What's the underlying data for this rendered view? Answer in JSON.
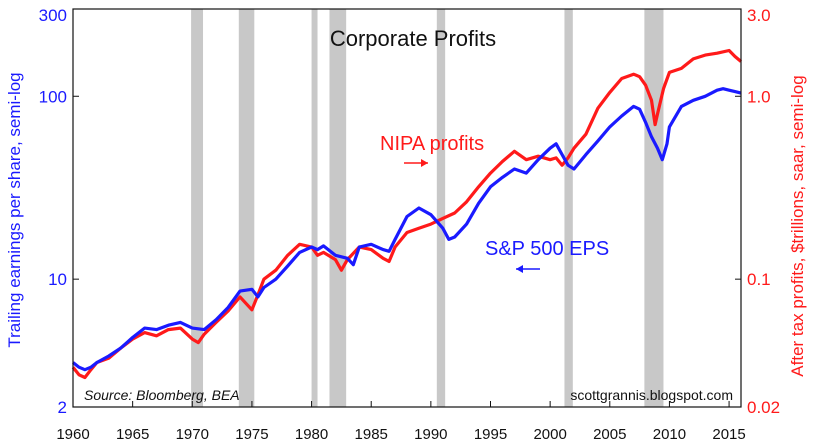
{
  "chart_data": {
    "type": "line",
    "title": "Corporate Profits",
    "x_axis": {
      "min": 1960,
      "max": 2016,
      "ticks": [
        1960,
        1965,
        1970,
        1975,
        1980,
        1985,
        1990,
        1995,
        2000,
        2005,
        2010,
        2015
      ]
    },
    "y_left": {
      "label": "Trailing earnings per share, semi-log",
      "scale": "log",
      "min": 2,
      "max": 300,
      "ticks": [
        {
          "value": 2,
          "label": "2"
        },
        {
          "value": 10,
          "label": "10"
        },
        {
          "value": 100,
          "label": "100"
        },
        {
          "value": 300,
          "label": "300"
        }
      ],
      "color": "#1a1aff"
    },
    "y_right": {
      "label": "After tax profits, $trillions, saar, semi-log",
      "scale": "log",
      "min": 0.02,
      "max": 3.0,
      "ticks": [
        {
          "value": 0.02,
          "label": "0.02"
        },
        {
          "value": 0.1,
          "label": "0.1"
        },
        {
          "value": 1.0,
          "label": "1.0"
        },
        {
          "value": 3.0,
          "label": "3.0"
        }
      ],
      "color": "#ff1a1a"
    },
    "grid": false,
    "recessions": [
      [
        1969.9,
        1970.9
      ],
      [
        1973.9,
        1975.2
      ],
      [
        1980.0,
        1980.5
      ],
      [
        1981.5,
        1982.9
      ],
      [
        1990.5,
        1991.2
      ],
      [
        2001.2,
        2001.9
      ],
      [
        2007.9,
        2009.5
      ]
    ],
    "series": [
      {
        "name": "S&P 500 EPS",
        "axis": "left",
        "color": "#1a1aff",
        "points": [
          [
            1960.0,
            3.5
          ],
          [
            1960.5,
            3.3
          ],
          [
            1961.0,
            3.2
          ],
          [
            1961.5,
            3.3
          ],
          [
            1962.0,
            3.5
          ],
          [
            1963.0,
            3.8
          ],
          [
            1964.0,
            4.2
          ],
          [
            1965.0,
            4.8
          ],
          [
            1966.0,
            5.4
          ],
          [
            1967.0,
            5.3
          ],
          [
            1968.0,
            5.6
          ],
          [
            1969.0,
            5.8
          ],
          [
            1970.0,
            5.4
          ],
          [
            1971.0,
            5.3
          ],
          [
            1972.0,
            6.0
          ],
          [
            1973.0,
            7.0
          ],
          [
            1974.0,
            8.6
          ],
          [
            1975.0,
            8.8
          ],
          [
            1975.5,
            8.0
          ],
          [
            1976.0,
            9.0
          ],
          [
            1977.0,
            10.0
          ],
          [
            1978.0,
            11.8
          ],
          [
            1979.0,
            14.0
          ],
          [
            1980.0,
            15.0
          ],
          [
            1980.5,
            14.5
          ],
          [
            1981.0,
            15.2
          ],
          [
            1982.0,
            13.5
          ],
          [
            1983.0,
            13.0
          ],
          [
            1983.5,
            12.0
          ],
          [
            1984.0,
            15.0
          ],
          [
            1985.0,
            15.5
          ],
          [
            1986.0,
            14.5
          ],
          [
            1986.5,
            14.2
          ],
          [
            1987.0,
            16.5
          ],
          [
            1988.0,
            22.0
          ],
          [
            1989.0,
            24.5
          ],
          [
            1990.0,
            22.5
          ],
          [
            1991.0,
            19.0
          ],
          [
            1991.5,
            16.5
          ],
          [
            1992.0,
            17.0
          ],
          [
            1993.0,
            20.0
          ],
          [
            1994.0,
            26.0
          ],
          [
            1995.0,
            32.0
          ],
          [
            1996.0,
            36.0
          ],
          [
            1997.0,
            40.0
          ],
          [
            1998.0,
            38.0
          ],
          [
            1999.0,
            45.0
          ],
          [
            2000.0,
            52.0
          ],
          [
            2000.5,
            55.0
          ],
          [
            2001.0,
            48.0
          ],
          [
            2001.5,
            42.0
          ],
          [
            2002.0,
            40.0
          ],
          [
            2003.0,
            48.0
          ],
          [
            2004.0,
            57.0
          ],
          [
            2005.0,
            68.0
          ],
          [
            2006.0,
            78.0
          ],
          [
            2007.0,
            88.0
          ],
          [
            2007.5,
            85.0
          ],
          [
            2008.0,
            72.0
          ],
          [
            2008.5,
            60.0
          ],
          [
            2009.0,
            52.0
          ],
          [
            2009.4,
            45.0
          ],
          [
            2009.8,
            55.0
          ],
          [
            2010.0,
            68.0
          ],
          [
            2011.0,
            88.0
          ],
          [
            2012.0,
            95.0
          ],
          [
            2013.0,
            100.0
          ],
          [
            2014.0,
            108.0
          ],
          [
            2014.5,
            110.0
          ],
          [
            2015.0,
            108.0
          ],
          [
            2015.5,
            106.0
          ],
          [
            2016.0,
            104.0
          ]
        ]
      },
      {
        "name": "NIPA profits",
        "axis": "right",
        "color": "#ff1a1a",
        "points": [
          [
            1960.0,
            0.033
          ],
          [
            1960.5,
            0.03
          ],
          [
            1961.0,
            0.029
          ],
          [
            1961.5,
            0.032
          ],
          [
            1962.0,
            0.035
          ],
          [
            1963.0,
            0.037
          ],
          [
            1964.0,
            0.042
          ],
          [
            1965.0,
            0.047
          ],
          [
            1966.0,
            0.051
          ],
          [
            1967.0,
            0.049
          ],
          [
            1968.0,
            0.053
          ],
          [
            1969.0,
            0.054
          ],
          [
            1970.0,
            0.047
          ],
          [
            1970.5,
            0.045
          ],
          [
            1971.0,
            0.05
          ],
          [
            1972.0,
            0.058
          ],
          [
            1973.0,
            0.067
          ],
          [
            1974.0,
            0.08
          ],
          [
            1975.0,
            0.068
          ],
          [
            1975.5,
            0.082
          ],
          [
            1976.0,
            0.1
          ],
          [
            1977.0,
            0.112
          ],
          [
            1978.0,
            0.135
          ],
          [
            1979.0,
            0.155
          ],
          [
            1980.0,
            0.15
          ],
          [
            1980.5,
            0.135
          ],
          [
            1981.0,
            0.14
          ],
          [
            1982.0,
            0.128
          ],
          [
            1982.5,
            0.112
          ],
          [
            1983.0,
            0.128
          ],
          [
            1984.0,
            0.15
          ],
          [
            1985.0,
            0.145
          ],
          [
            1986.0,
            0.13
          ],
          [
            1986.5,
            0.125
          ],
          [
            1987.0,
            0.15
          ],
          [
            1988.0,
            0.18
          ],
          [
            1989.0,
            0.19
          ],
          [
            1990.0,
            0.2
          ],
          [
            1991.0,
            0.215
          ],
          [
            1992.0,
            0.23
          ],
          [
            1993.0,
            0.265
          ],
          [
            1994.0,
            0.32
          ],
          [
            1995.0,
            0.38
          ],
          [
            1996.0,
            0.44
          ],
          [
            1997.0,
            0.5
          ],
          [
            1998.0,
            0.45
          ],
          [
            1999.0,
            0.47
          ],
          [
            2000.0,
            0.45
          ],
          [
            2000.5,
            0.46
          ],
          [
            2001.0,
            0.42
          ],
          [
            2001.5,
            0.46
          ],
          [
            2002.0,
            0.52
          ],
          [
            2003.0,
            0.62
          ],
          [
            2004.0,
            0.86
          ],
          [
            2005.0,
            1.05
          ],
          [
            2006.0,
            1.25
          ],
          [
            2007.0,
            1.32
          ],
          [
            2007.5,
            1.28
          ],
          [
            2008.0,
            1.15
          ],
          [
            2008.5,
            0.95
          ],
          [
            2008.8,
            0.7
          ],
          [
            2009.0,
            0.8
          ],
          [
            2009.5,
            1.1
          ],
          [
            2010.0,
            1.35
          ],
          [
            2011.0,
            1.42
          ],
          [
            2012.0,
            1.6
          ],
          [
            2013.0,
            1.68
          ],
          [
            2014.0,
            1.72
          ],
          [
            2015.0,
            1.78
          ],
          [
            2015.5,
            1.65
          ],
          [
            2016.0,
            1.55
          ]
        ]
      }
    ],
    "annotations": [
      {
        "text": "NIPA profits",
        "color": "#ff1a1a",
        "arrow": "right"
      },
      {
        "text": "S&P 500 EPS",
        "color": "#1a1aff",
        "arrow": "left"
      }
    ],
    "source": "Source: Bloomberg, BEA",
    "credit": "scottgrannis.blogspot.com"
  }
}
